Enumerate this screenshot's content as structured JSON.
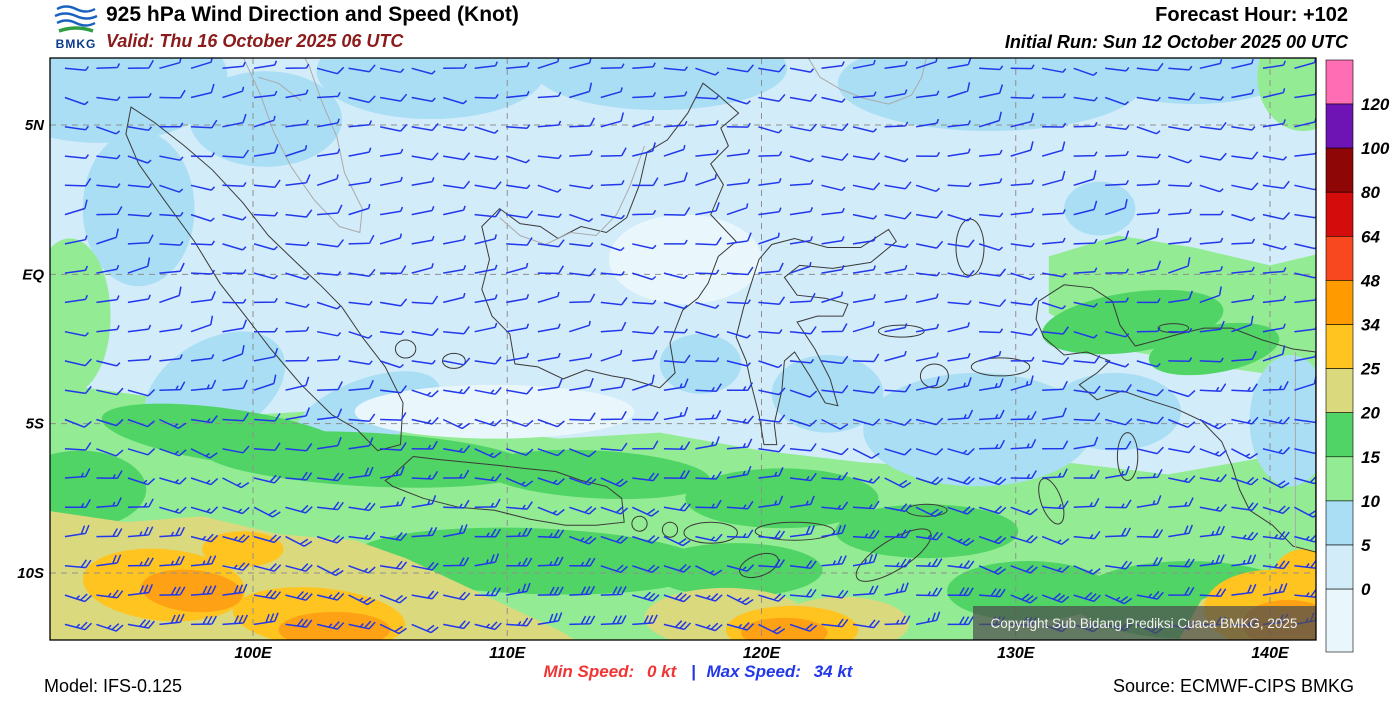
{
  "header": {
    "logo_text": "BMKG",
    "title": "925 hPa Wind Direction and Speed (Knot)",
    "valid": "Valid: Thu 16 October 2025 06 UTC",
    "forecast_hour": "Forecast Hour: +102",
    "initial_run": "Initial Run: Sun 12 October 2025 00 UTC"
  },
  "map": {
    "copyright": "Copyright Sub Bidang Prediksi Cuaca BMKG, 2025",
    "lat_labels": [
      {
        "text": "5N",
        "lat": 5
      },
      {
        "text": "EQ",
        "lat": 0
      },
      {
        "text": "5S",
        "lat": -5
      },
      {
        "text": "10S",
        "lat": -10
      }
    ],
    "lon_labels": [
      {
        "text": "100E",
        "lon": 100
      },
      {
        "text": "110E",
        "lon": 110
      },
      {
        "text": "120E",
        "lon": 120
      },
      {
        "text": "130E",
        "lon": 130
      },
      {
        "text": "140E",
        "lon": 140
      }
    ]
  },
  "legend": {
    "tick_labels": [
      "120",
      "100",
      "80",
      "64",
      "48",
      "34",
      "25",
      "20",
      "15",
      "10",
      "5",
      "0"
    ],
    "colors_top_to_bottom": [
      "#ff6eb4",
      "#6e14b4",
      "#8f0606",
      "#d40c0c",
      "#f84820",
      "#ff9a00",
      "#ffc41f",
      "#dbd97e",
      "#4fd465",
      "#93ec93",
      "#a9def4",
      "#d2ecfa",
      "#e9f7fd"
    ]
  },
  "footer": {
    "model": "Model: IFS-0.125",
    "min_speed_label": "Min Speed:",
    "min_speed_value": "0 kt",
    "separator": "|",
    "max_speed_label": "Max Speed:",
    "max_speed_value": "34 kt",
    "source": "Source: ECMWF-CIPS BMKG"
  },
  "chart_data": {
    "type": "heatmap",
    "subtype": "wind-barb-map",
    "title": "925 hPa Wind Direction and Speed (Knot)",
    "units": "knot",
    "valid_time": "Thu 16 October 2025 06 UTC",
    "initial_run": "Sun 12 October 2025 00 UTC",
    "forecast_hour_offset": "+102",
    "model": "IFS-0.125",
    "source": "ECMWF-CIPS BMKG",
    "min_speed_kt": 0,
    "max_speed_kt": 34,
    "x_axis": {
      "ticks": [
        "100E",
        "110E",
        "120E",
        "130E",
        "140E"
      ],
      "range_deg_east": [
        92,
        142
      ]
    },
    "y_axis": {
      "ticks": [
        "5N",
        "EQ",
        "5S",
        "10S"
      ],
      "range_deg_north": [
        7.2,
        -12.2
      ]
    },
    "speed_scale_kt": [
      0,
      5,
      10,
      15,
      20,
      25,
      34,
      48,
      64,
      80,
      100,
      120
    ],
    "scale_colors_top_to_bottom": [
      "#ff6eb4",
      "#6e14b4",
      "#8f0606",
      "#d40c0c",
      "#f84820",
      "#ff9a00",
      "#ffc41f",
      "#dbd97e",
      "#4fd465",
      "#93ec93",
      "#a9def4",
      "#d2ecfa",
      "#e9f7fd"
    ],
    "legend_position": "right",
    "grid": "dashed, 10 deg lon x 5 deg lat",
    "flow_summary": [
      {
        "region": "north of ~4S",
        "wind_from": "E",
        "speed_kt": "3-10"
      },
      {
        "region": "~4S to ~8S",
        "wind_from": "E-ESE",
        "speed_kt": "10-20"
      },
      {
        "region": "~8S to ~12S (southern band)",
        "wind_from": "ESE",
        "speed_kt": "20-34"
      }
    ]
  }
}
